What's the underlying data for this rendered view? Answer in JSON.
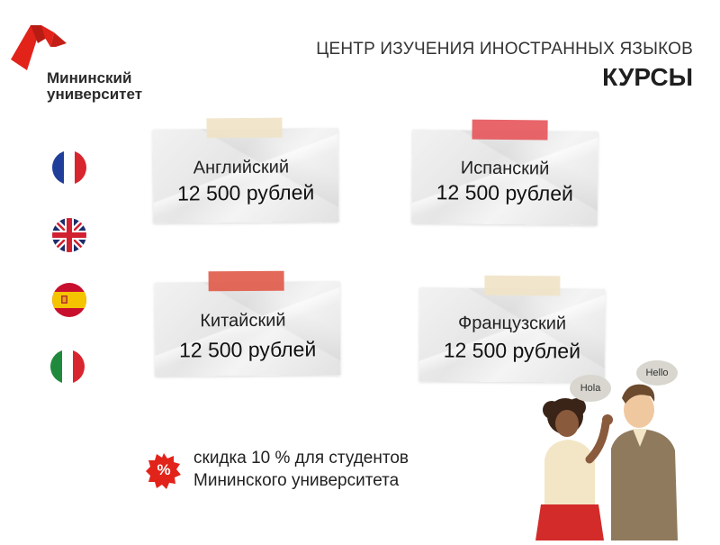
{
  "logo": {
    "name_line1": "Мининский",
    "name_line2": "университет",
    "color": "#e2231a"
  },
  "header": {
    "subtitle": "ЦЕНТР ИЗУЧЕНИЯ ИНОСТРАННЫХ ЯЗЫКОВ",
    "title": "КУРСЫ"
  },
  "flags": [
    "france-flag-icon",
    "uk-flag-icon",
    "spain-flag-icon",
    "italy-flag-icon"
  ],
  "courses": [
    {
      "language": "Английский",
      "price": "12 500 рублей",
      "tape_color": "#efe3c6"
    },
    {
      "language": "Испанский",
      "price": "12 500 рублей",
      "tape_color": "#e5545a"
    },
    {
      "language": "Китайский",
      "price": "12 500 рублей",
      "tape_color": "#e05a48"
    },
    {
      "language": "Французский",
      "price": "12 500 рублей",
      "tape_color": "#efe3c6"
    }
  ],
  "discount": {
    "badge": "%",
    "line1": "скидка 10 % для студентов",
    "line2": "Мининского университета",
    "badge_color": "#e2231a"
  },
  "illustration": {
    "bubble_left": "Hola",
    "bubble_right": "Hello"
  }
}
